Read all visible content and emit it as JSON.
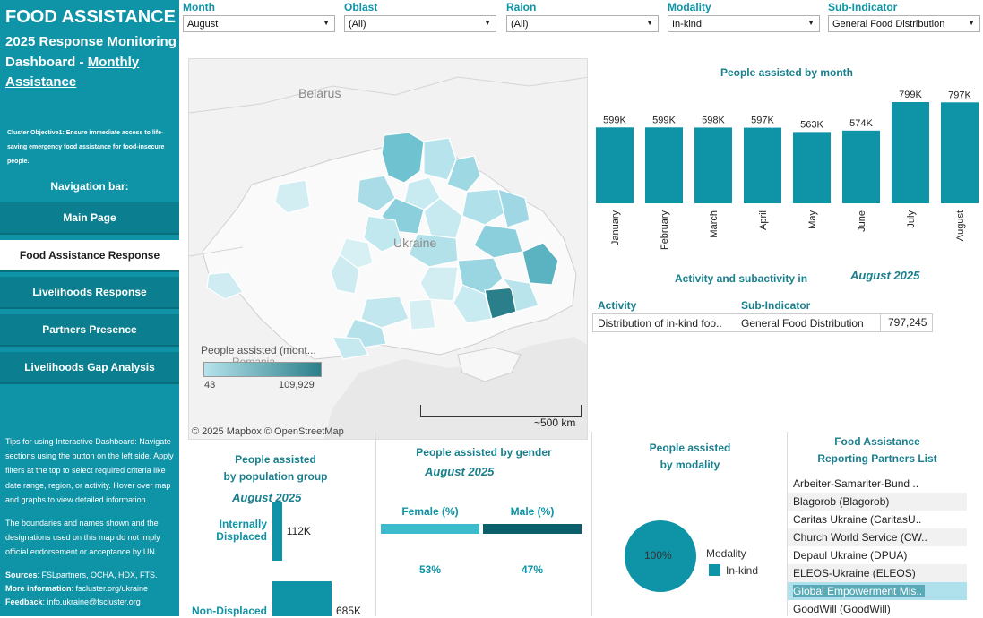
{
  "sidebar": {
    "title": "FOOD ASSISTANCE",
    "subtitle_main": "2025 Response Monitoring Dashboard - ",
    "subtitle_link": "Monthly Assistance",
    "objective": "Cluster Objective1: Ensure immediate access to life-saving emergency food assistance for food-insecure people.",
    "nav_label": "Navigation bar:",
    "nav_items": [
      "Main Page",
      "Food Assistance Response",
      "Livelihoods Response",
      "Partners Presence",
      "Livelihoods Gap Analysis"
    ],
    "active_nav": "Food Assistance Response",
    "tips": "Tips for using Interactive Dashboard: Navigate sections using the button on the left side. Apply filters at the top to select required criteria like date range, region, or activity. Hover over map and graphs to view detailed information.",
    "disclaimer": "The boundaries and names shown and the designations used on this map do not imply official endorsement or acceptance by UN.",
    "sources_label": "Sources",
    "sources": ": FSLpartners, OCHA, HDX, FTS.",
    "more_label": "More information",
    "more": ": fscluster.org/ukraine",
    "feedback_label": "Feedback",
    "feedback": ": info.ukraine@fscluster.org"
  },
  "filters": [
    {
      "label": "Month",
      "value": "August"
    },
    {
      "label": "Oblast",
      "value": "(All)"
    },
    {
      "label": "Raion",
      "value": "(All)"
    },
    {
      "label": "Modality",
      "value": "In-kind"
    },
    {
      "label": "Sub-Indicator",
      "value": "General Food Distribution"
    }
  ],
  "map": {
    "labels": {
      "belarus": "Belarus",
      "ukraine": "Ukraine",
      "romania": "Romania"
    },
    "legend_title": "People assisted (mont...",
    "legend_min": "43",
    "legend_max": "109,929",
    "scale": "~500 km",
    "credit": "© 2025 Mapbox  © OpenStreetMap"
  },
  "chart_data": {
    "type": "bar",
    "title": "People assisted by month",
    "categories": [
      "January",
      "February",
      "March",
      "April",
      "May",
      "June",
      "July",
      "August"
    ],
    "values": [
      599000,
      599000,
      598000,
      597000,
      563000,
      574000,
      799000,
      797000
    ],
    "value_labels": [
      "599K",
      "599K",
      "598K",
      "597K",
      "563K",
      "574K",
      "799K",
      "797K"
    ],
    "color": "#0f93a6",
    "ylim": [
      0,
      799000
    ]
  },
  "activity": {
    "title": "Activity and subactivity in",
    "period": "August 2025",
    "col_activity": "Activity",
    "col_sub": "Sub-Indicator",
    "row_activity": "Distribution of in-kind foo..",
    "row_sub": "General Food Distribution",
    "row_value": "797,245"
  },
  "population": {
    "title_line1": "People assisted",
    "title_line2": "by population group",
    "period": "August 2025",
    "groups": [
      {
        "label_line1": "Internally",
        "label_line2": "Displaced",
        "value": "112K",
        "num": 112000
      },
      {
        "label_line1": "Non-Displaced",
        "label_line2": "",
        "value": "685K",
        "num": 685000
      }
    ]
  },
  "gender": {
    "title": "People assisted by gender",
    "period": "August 2025",
    "female_label": "Female (%)",
    "male_label": "Male (%)",
    "female_pct": "53%",
    "male_pct": "47%",
    "female_color": "#3bbbcb",
    "male_color": "#0b5f6b"
  },
  "modality": {
    "title_line1": "People assisted",
    "title_line2": "by modality",
    "pie_label": "100%",
    "legend_title": "Modality",
    "legend_item": "In-kind",
    "color": "#0f93a6"
  },
  "partners": {
    "title_line1": "Food Assistance",
    "title_line2": "Reporting Partners List",
    "items": [
      "Arbeiter-Samariter-Bund ..",
      "Blagorob (Blagorob)",
      "Caritas Ukraine (CaritasU..",
      "Church World Service (CW..",
      "Depaul Ukraine (DPUA)",
      "ELEOS-Ukraine (ELEOS)",
      "Global Empowerment Mis..",
      "GoodWill (GoodWill)"
    ],
    "highlighted": "Global Empowerment Mis.."
  }
}
